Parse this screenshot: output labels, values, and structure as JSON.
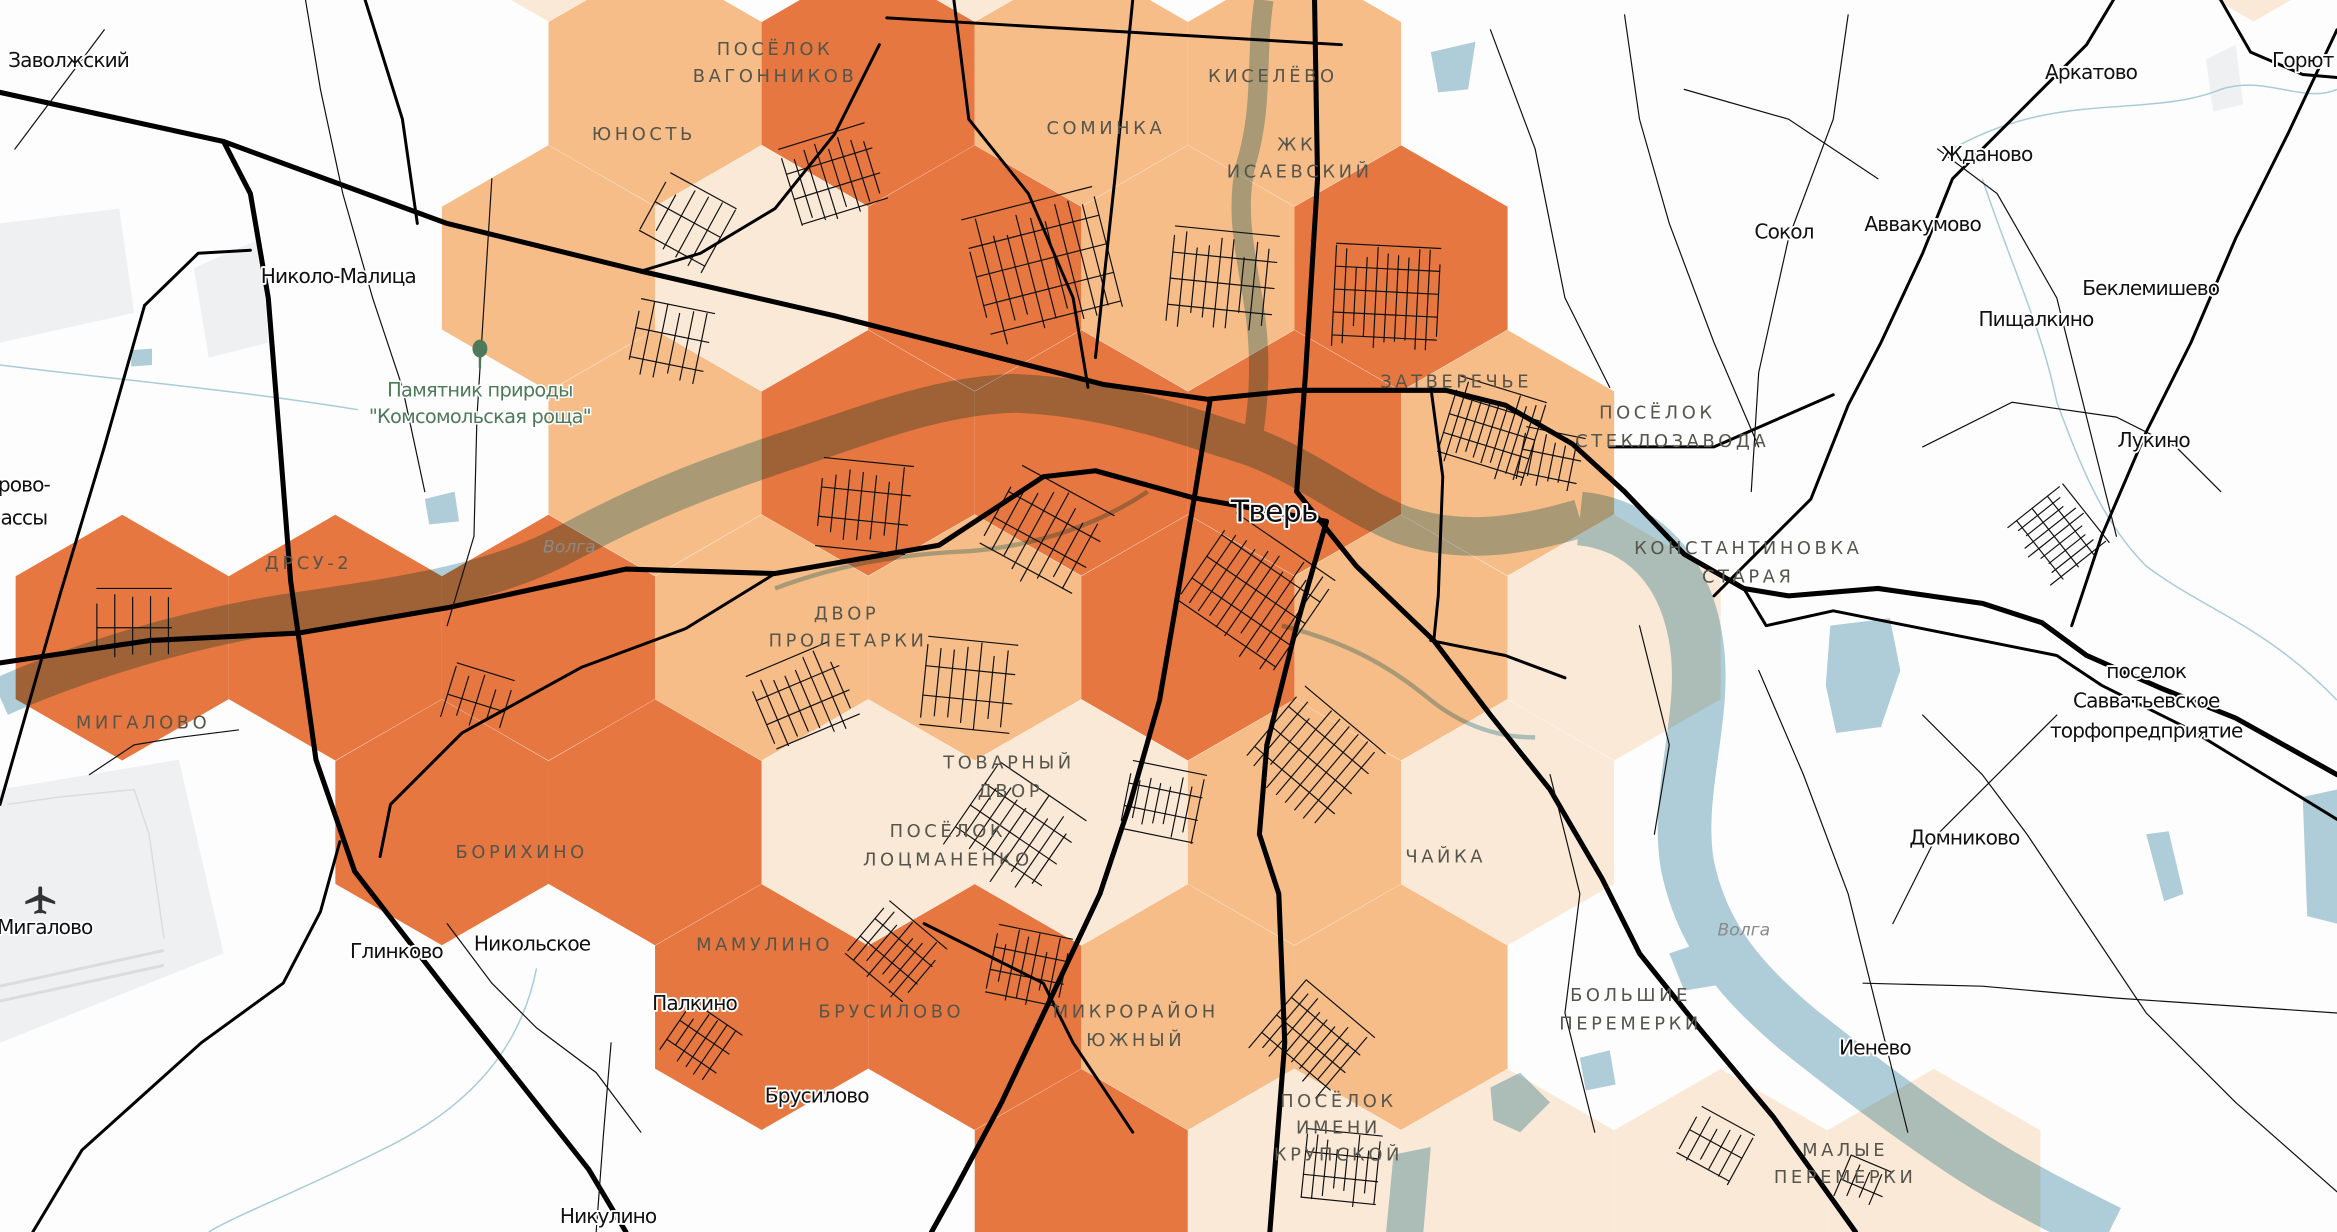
{
  "map": {
    "colors": {
      "density_high": "#e97840",
      "density_medium": "#f9bf8a",
      "density_low": "#fdebda",
      "water": "#aecdd8",
      "roads": "#000000",
      "district_label": "#55554c",
      "poi_label": "#4d7a58"
    },
    "city": "Тверь",
    "rivers": [
      "Волга",
      "Волга"
    ],
    "places": {
      "zavolzhsky": "Заволжский",
      "nikolo_malitsa": "Николо-Малица",
      "sokol": "Сокол",
      "avvakumovo": "Аввакумово",
      "zhdanovo": "Жданово",
      "arkatovo": "Аркатово",
      "goryut": "Горют",
      "beklemishevo": "Беклемишево",
      "pishchalkino": "Пищалкино",
      "lukino": "Лукино",
      "rovo_line1": "рово-",
      "rovo_line2": "ассы",
      "savvatyevskoe_line1": "поселок",
      "savvatyevskoe_line2": "Савватьевское",
      "savvatyevskoe_line3": "торфопредприятие",
      "domnikovo": "Домниково",
      "migalovo_airport": "Мигалово",
      "glinkovo": "Глинково",
      "nikolskoe": "Никольское",
      "palkino": "Палкино",
      "ienevo": "Иенево",
      "brusilovo": "Брусилово",
      "nikulino": "Никулино"
    },
    "districts": {
      "vagonnikov_1": "ПОСЁЛОК",
      "vagonnikov_2": "ВАГОННИКОВ",
      "yunost": "ЮНОСТЬ",
      "kiselevo": "КИСЕЛЁВО",
      "sominka": "СОМИНКА",
      "isaevsky_1": "ЖК",
      "isaevsky_2": "ИСАЕВСКИЙ",
      "zatverechye": "ЗАТВЕРЕЧЬЕ",
      "steklozavoda_1": "ПОСЁЛОК",
      "steklozavoda_2": "СТЕКЛОЗАВОДА",
      "drsu2": "ДРСУ-2",
      "konstantinovka_1": "КОНСТАНТИНОВКА",
      "konstantinovka_2": "СТАРАЯ",
      "proletarki_1": "ДВОР",
      "proletarki_2": "ПРОЛЕТАРКИ",
      "migalovo": "МИГАЛОВО",
      "tovarny_1": "ТОВАРНЫЙ",
      "tovarny_2": "ДВОР",
      "lotsmanenko_1": "ПОСЁЛОК",
      "lotsmanenko_2": "ЛОЦМАНЕНКО",
      "borikhino": "БОРИХИНО",
      "chayka": "ЧАЙКА",
      "mamulino": "МАМУЛИНО",
      "brusilovo": "БРУСИЛОВО",
      "yuzhny_1": "МИКРОРАЙОН",
      "yuzhny_2": "ЮЖНЫЙ",
      "bolshie_1": "БОЛЬШИЕ",
      "bolshie_2": "ПЕРЕМЕРКИ",
      "krupskoy_1": "ПОСЁЛОК",
      "krupskoy_2": "ИМЕНИ",
      "krupskoy_3": "КРУПСКОЙ",
      "malye_1": "МАЛЫЕ",
      "malye_2": "ПЕРЕМЕРКИ"
    },
    "poi": {
      "line1": "Памятник природы",
      "line2": "\"Комсомольская роща\"",
      "icon": "tree-icon"
    },
    "airport_icon": "airplane-icon"
  }
}
